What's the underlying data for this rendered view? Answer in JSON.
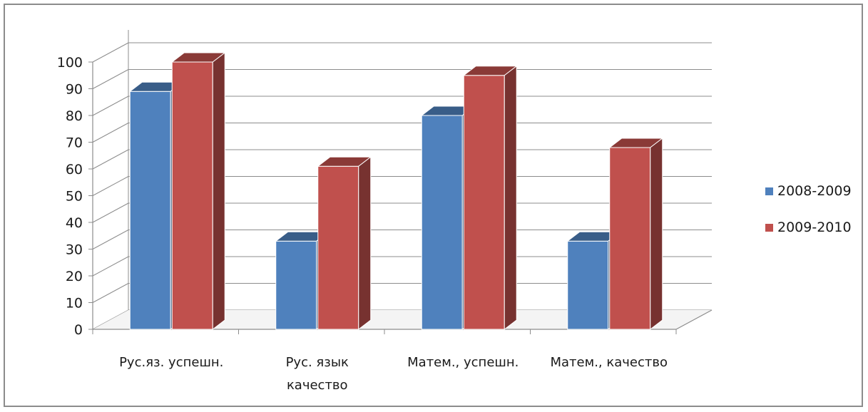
{
  "chart_data": {
    "type": "bar",
    "categories": [
      [
        "Рус.яз. успешн."
      ],
      [
        "Рус. язык",
        "качество"
      ],
      [
        "Матем., успешн."
      ],
      [
        "Матем., качество"
      ]
    ],
    "series": [
      {
        "name": "2008-2009",
        "values": [
          89,
          33,
          80,
          33
        ],
        "color": "#4f81bd"
      },
      {
        "name": "2009-2010",
        "values": [
          100,
          61,
          95,
          68
        ],
        "color": "#c0504d"
      }
    ],
    "ylim": [
      0,
      100
    ],
    "yticks": [
      0,
      10,
      20,
      30,
      40,
      50,
      60,
      70,
      80,
      90,
      100
    ],
    "grid": true,
    "legend_position": "right",
    "style": "3d-column"
  }
}
